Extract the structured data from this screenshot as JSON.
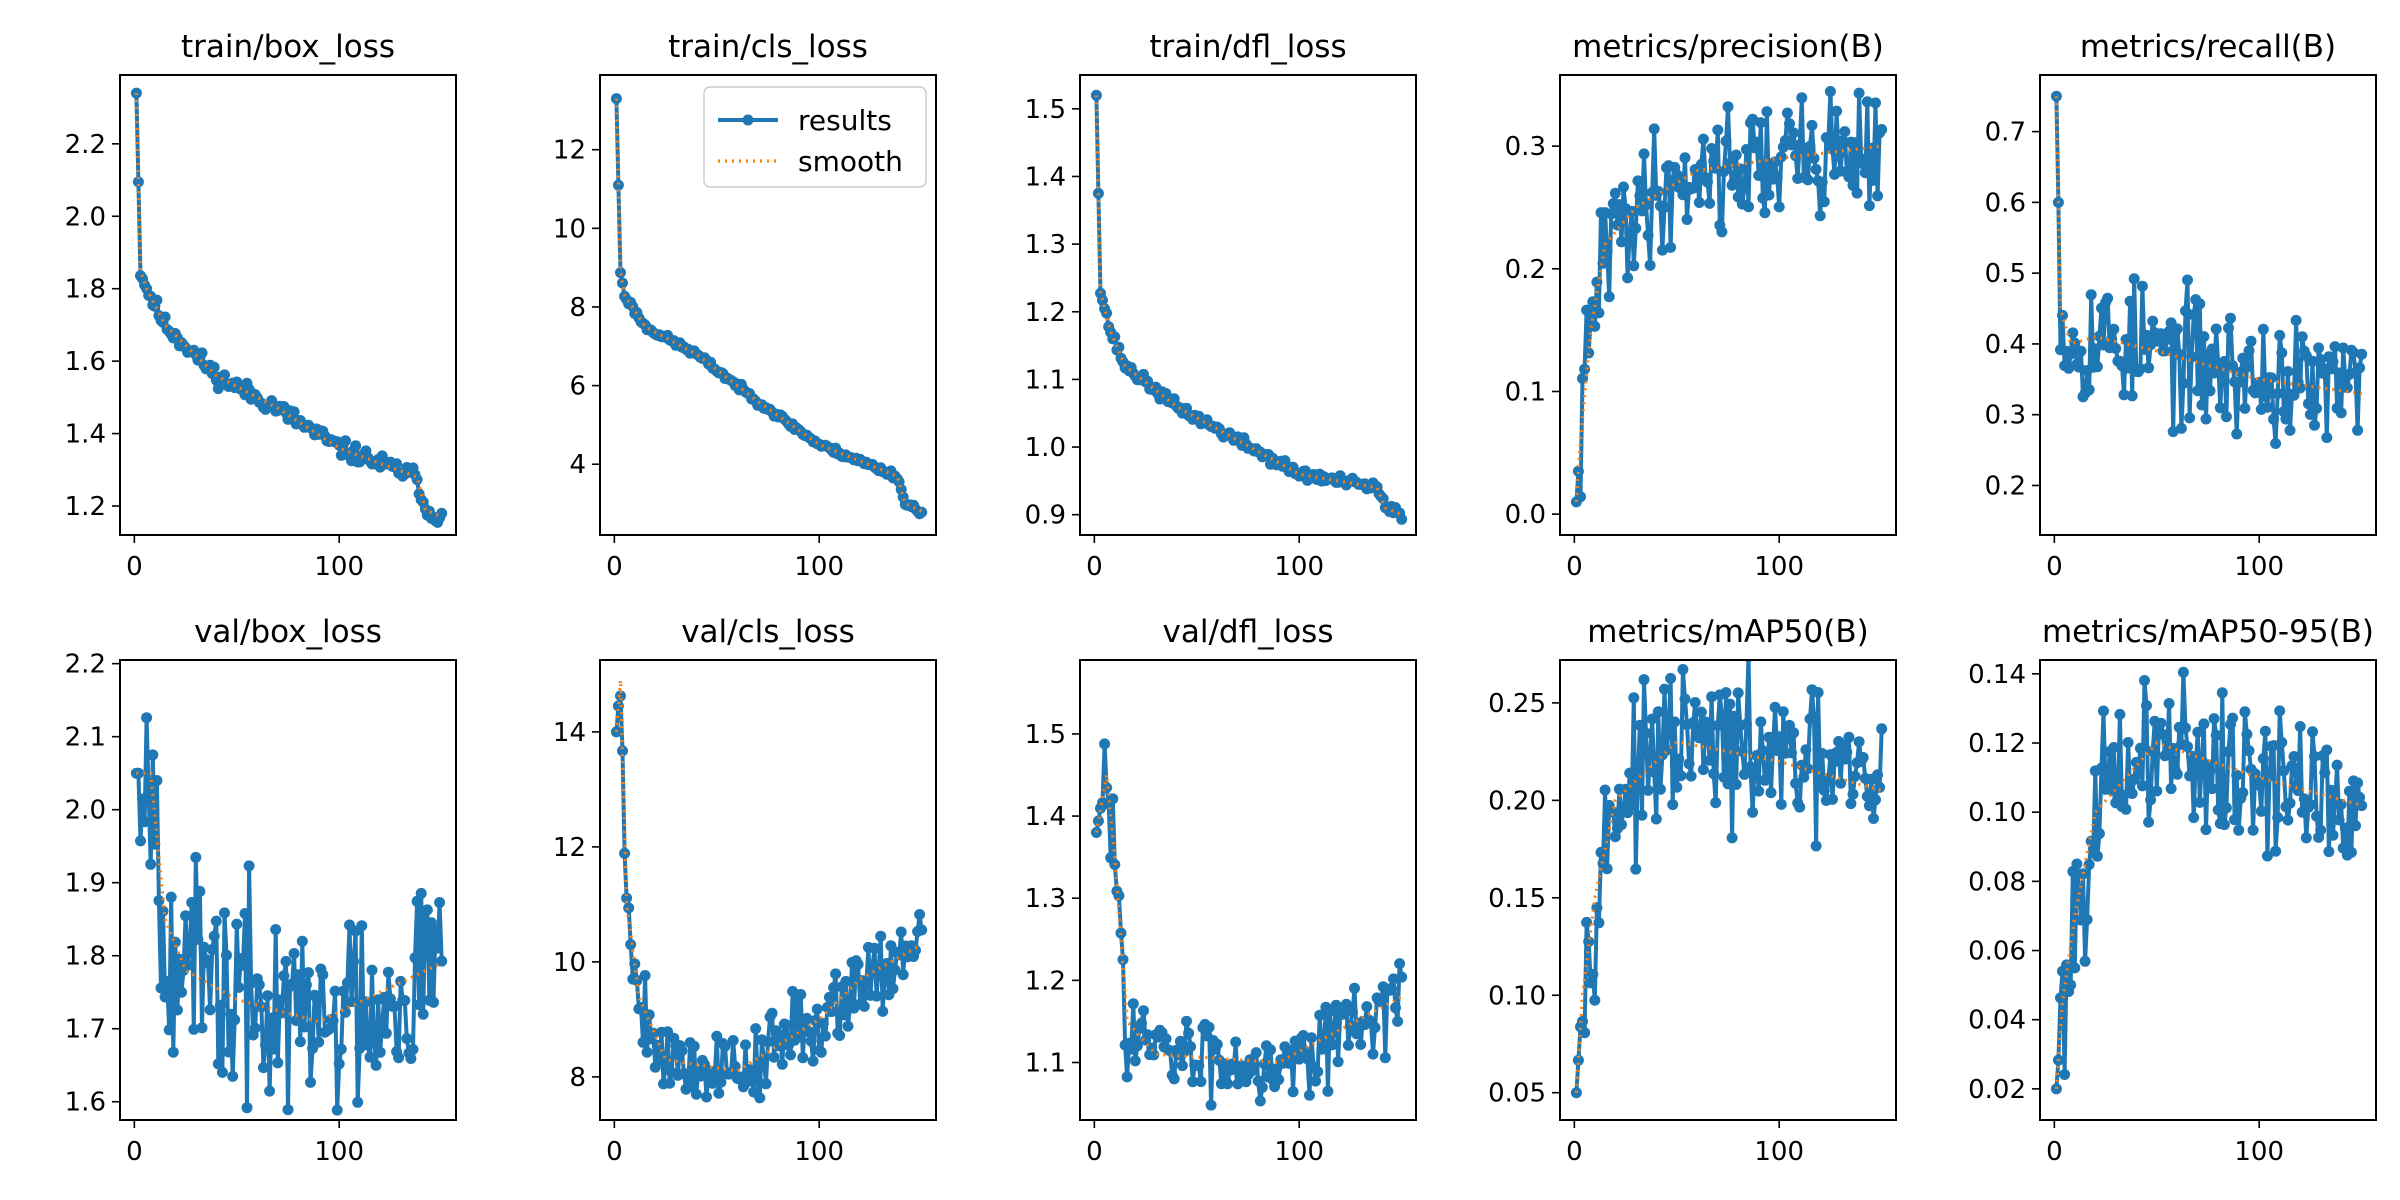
{
  "colors": {
    "results": "#1f77b4",
    "smooth": "#ff7f0e",
    "axis": "#000000"
  },
  "legend": {
    "location": "top-right",
    "entries": [
      "results",
      "smooth"
    ],
    "panel": 1
  },
  "chart_data": [
    {
      "type": "line",
      "title": "train/box_loss",
      "xlim": [
        -7,
        157
      ],
      "ylim": [
        1.12,
        2.39
      ],
      "xticks": [
        0,
        100
      ],
      "yticks": [
        1.2,
        1.4,
        1.6,
        1.8,
        2.0,
        2.2
      ],
      "ytick_labels": [
        "1.2",
        "1.4",
        "1.6",
        "1.8",
        "2.0",
        "2.2"
      ],
      "gen": {
        "shape": "decay",
        "start": 2.34,
        "end": 1.16,
        "k": 0.012,
        "noise": 0.012,
        "seed": 11,
        "knots": [
          [
            1,
            2.34
          ],
          [
            3,
            1.85
          ],
          [
            6,
            1.8
          ],
          [
            15,
            1.7
          ],
          [
            40,
            1.56
          ],
          [
            70,
            1.47
          ],
          [
            100,
            1.36
          ],
          [
            138,
            1.28
          ],
          [
            142,
            1.19
          ],
          [
            150,
            1.17
          ]
        ]
      }
    },
    {
      "type": "line",
      "title": "train/cls_loss",
      "xlim": [
        -7,
        157
      ],
      "ylim": [
        2.2,
        13.9
      ],
      "xticks": [
        0,
        100
      ],
      "yticks": [
        4,
        6,
        8,
        10,
        12
      ],
      "ytick_labels": [
        "4",
        "6",
        "8",
        "10",
        "12"
      ],
      "gen": {
        "shape": "knots",
        "noise": 0.04,
        "seed": 23,
        "knots": [
          [
            1,
            13.3
          ],
          [
            3,
            8.9
          ],
          [
            5,
            8.3
          ],
          [
            15,
            7.5
          ],
          [
            40,
            6.8
          ],
          [
            70,
            5.6
          ],
          [
            100,
            4.5
          ],
          [
            138,
            3.7
          ],
          [
            142,
            3.0
          ],
          [
            150,
            2.8
          ]
        ]
      }
    },
    {
      "type": "line",
      "title": "train/dfl_loss",
      "xlim": [
        -7,
        157
      ],
      "ylim": [
        0.87,
        1.55
      ],
      "xticks": [
        0,
        100
      ],
      "yticks": [
        0.9,
        1.0,
        1.1,
        1.2,
        1.3,
        1.4,
        1.5
      ],
      "ytick_labels": [
        "0.9",
        "1.0",
        "1.1",
        "1.2",
        "1.3",
        "1.4",
        "1.5"
      ],
      "gen": {
        "shape": "knots",
        "noise": 0.004,
        "seed": 37,
        "knots": [
          [
            1,
            1.52
          ],
          [
            3,
            1.23
          ],
          [
            8,
            1.17
          ],
          [
            15,
            1.12
          ],
          [
            40,
            1.06
          ],
          [
            70,
            1.01
          ],
          [
            100,
            0.96
          ],
          [
            138,
            0.94
          ],
          [
            142,
            0.91
          ],
          [
            150,
            0.9
          ]
        ]
      }
    },
    {
      "type": "line",
      "title": "metrics/precision(B)",
      "xlim": [
        -7,
        157
      ],
      "ylim": [
        -0.017,
        0.358
      ],
      "xticks": [
        0,
        100
      ],
      "yticks": [
        0.0,
        0.1,
        0.2,
        0.3
      ],
      "ytick_labels": [
        "0.0",
        "0.1",
        "0.2",
        "0.3"
      ],
      "gen": {
        "shape": "knots",
        "noise": 0.025,
        "seed": 41,
        "knots": [
          [
            1,
            0.01
          ],
          [
            3,
            0.06
          ],
          [
            8,
            0.15
          ],
          [
            15,
            0.22
          ],
          [
            30,
            0.25
          ],
          [
            60,
            0.28
          ],
          [
            100,
            0.29
          ],
          [
            150,
            0.3
          ]
        ]
      }
    },
    {
      "type": "line",
      "title": "metrics/recall(B)",
      "xlim": [
        -7,
        157
      ],
      "ylim": [
        0.13,
        0.78
      ],
      "xticks": [
        0,
        100
      ],
      "yticks": [
        0.2,
        0.3,
        0.4,
        0.5,
        0.6,
        0.7
      ],
      "ytick_labels": [
        "0.2",
        "0.3",
        "0.4",
        "0.5",
        "0.6",
        "0.7"
      ],
      "gen": {
        "shape": "knots",
        "noise": 0.045,
        "seed": 53,
        "knots": [
          [
            1,
            0.75
          ],
          [
            3,
            0.45
          ],
          [
            8,
            0.4
          ],
          [
            20,
            0.41
          ],
          [
            50,
            0.39
          ],
          [
            100,
            0.35
          ],
          [
            150,
            0.33
          ]
        ]
      }
    },
    {
      "type": "line",
      "title": "val/box_loss",
      "xlim": [
        -7,
        157
      ],
      "ylim": [
        1.575,
        2.205
      ],
      "xticks": [
        0,
        100
      ],
      "yticks": [
        1.6,
        1.7,
        1.8,
        1.9,
        2.0,
        2.1,
        2.2
      ],
      "ytick_labels": [
        "1.6",
        "1.7",
        "1.8",
        "1.9",
        "2.0",
        "2.1",
        "2.2"
      ],
      "gen": {
        "shape": "knots",
        "noise": 0.07,
        "seed": 67,
        "knots": [
          [
            1,
            2.05
          ],
          [
            8,
            2.05
          ],
          [
            15,
            1.85
          ],
          [
            25,
            1.78
          ],
          [
            50,
            1.74
          ],
          [
            90,
            1.71
          ],
          [
            150,
            1.79
          ]
        ]
      }
    },
    {
      "type": "line",
      "title": "val/cls_loss",
      "xlim": [
        -7,
        157
      ],
      "ylim": [
        7.25,
        15.25
      ],
      "xticks": [
        0,
        100
      ],
      "yticks": [
        8,
        10,
        12,
        14
      ],
      "ytick_labels": [
        "8",
        "10",
        "12",
        "14"
      ],
      "gen": {
        "shape": "knots",
        "noise": 0.35,
        "seed": 79,
        "knots": [
          [
            1,
            14.0
          ],
          [
            3,
            14.9
          ],
          [
            6,
            11.0
          ],
          [
            12,
            9.4
          ],
          [
            25,
            8.3
          ],
          [
            60,
            8.1
          ],
          [
            100,
            9.0
          ],
          [
            120,
            9.7
          ],
          [
            150,
            10.3
          ]
        ]
      }
    },
    {
      "type": "line",
      "title": "val/dfl_loss",
      "xlim": [
        -7,
        157
      ],
      "ylim": [
        1.03,
        1.59
      ],
      "xticks": [
        0,
        100
      ],
      "yticks": [
        1.1,
        1.2,
        1.3,
        1.4,
        1.5
      ],
      "ytick_labels": [
        "1.1",
        "1.2",
        "1.3",
        "1.4",
        "1.5"
      ],
      "gen": {
        "shape": "knots",
        "noise": 0.025,
        "seed": 83,
        "knots": [
          [
            1,
            1.38
          ],
          [
            6,
            1.45
          ],
          [
            10,
            1.35
          ],
          [
            16,
            1.15
          ],
          [
            30,
            1.11
          ],
          [
            90,
            1.1
          ],
          [
            150,
            1.18
          ]
        ]
      }
    },
    {
      "type": "line",
      "title": "metrics/mAP50(B)",
      "xlim": [
        -7,
        157
      ],
      "ylim": [
        0.036,
        0.272
      ],
      "xticks": [
        0,
        100
      ],
      "yticks": [
        0.05,
        0.1,
        0.15,
        0.2,
        0.25
      ],
      "ytick_labels": [
        "0.05",
        "0.10",
        "0.15",
        "0.20",
        "0.25"
      ],
      "gen": {
        "shape": "knots",
        "noise": 0.018,
        "seed": 97,
        "knots": [
          [
            1,
            0.05
          ],
          [
            4,
            0.1
          ],
          [
            10,
            0.15
          ],
          [
            20,
            0.2
          ],
          [
            50,
            0.23
          ],
          [
            100,
            0.22
          ],
          [
            150,
            0.205
          ]
        ]
      }
    },
    {
      "type": "line",
      "title": "metrics/mAP50-95(B)",
      "xlim": [
        -7,
        157
      ],
      "ylim": [
        0.011,
        0.144
      ],
      "xticks": [
        0,
        100
      ],
      "yticks": [
        0.02,
        0.04,
        0.06,
        0.08,
        0.1,
        0.12,
        0.14
      ],
      "ytick_labels": [
        "0.02",
        "0.04",
        "0.06",
        "0.08",
        "0.10",
        "0.12",
        "0.14"
      ],
      "gen": {
        "shape": "knots",
        "noise": 0.011,
        "seed": 101,
        "knots": [
          [
            1,
            0.02
          ],
          [
            4,
            0.045
          ],
          [
            10,
            0.07
          ],
          [
            20,
            0.1
          ],
          [
            50,
            0.12
          ],
          [
            100,
            0.11
          ],
          [
            150,
            0.102
          ]
        ]
      }
    }
  ]
}
